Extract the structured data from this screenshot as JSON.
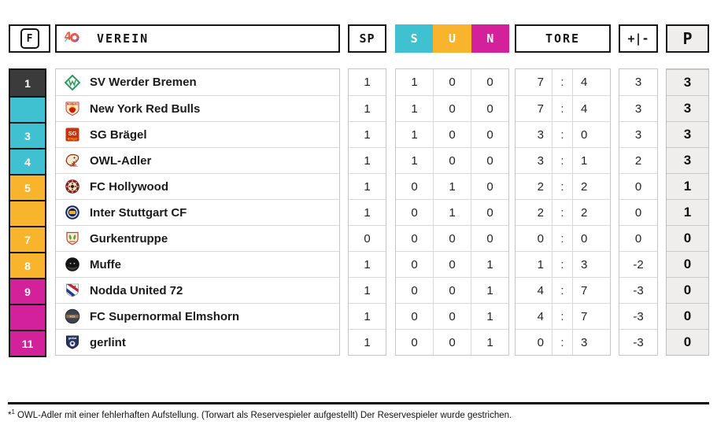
{
  "header": {
    "f": "F",
    "verein": "VEREIN",
    "anniversary_logo": "40",
    "sp": "SP",
    "s": "S",
    "u": "U",
    "n": "N",
    "tore": "TORE",
    "diff": "+|-",
    "points": "P"
  },
  "colors": {
    "band_dark": "#3b3b3b",
    "band_cyan": "#3fc1d2",
    "band_yellow": "#f7b42c",
    "band_magenta": "#d2219a",
    "header_s": "#3fc1d2",
    "header_u": "#f7b42c",
    "header_n": "#d2219a",
    "points_bg": "#efeeed"
  },
  "chart_data": {
    "type": "table",
    "title": "League standings",
    "columns": [
      "F",
      "VEREIN",
      "SP",
      "S",
      "U",
      "N",
      "TORE",
      "+|-",
      "P"
    ],
    "goals_separator": ":",
    "rows": [
      {
        "rank": "1",
        "band": "dark",
        "logo": "werder-bremen",
        "club": "SV Werder Bremen",
        "sp": "1",
        "s": "1",
        "u": "0",
        "n": "0",
        "goals_for": "7",
        "goals_against": "4",
        "diff": "3",
        "points": "3"
      },
      {
        "rank": "",
        "band": "cyan",
        "logo": "new-york-red-bulls",
        "club": "New York Red Bulls",
        "sp": "1",
        "s": "1",
        "u": "0",
        "n": "0",
        "goals_for": "7",
        "goals_against": "4",
        "diff": "3",
        "points": "3"
      },
      {
        "rank": "3",
        "band": "cyan",
        "logo": "sg-braegel",
        "club": "SG Brägel",
        "sp": "1",
        "s": "1",
        "u": "0",
        "n": "0",
        "goals_for": "3",
        "goals_against": "0",
        "diff": "3",
        "points": "3"
      },
      {
        "rank": "4",
        "band": "cyan",
        "logo": "owl-adler",
        "club": "OWL-Adler",
        "sp": "1",
        "s": "1",
        "u": "0",
        "n": "0",
        "goals_for": "3",
        "goals_against": "1",
        "diff": "2",
        "points": "3"
      },
      {
        "rank": "5",
        "band": "yellow",
        "logo": "fc-hollywood",
        "club": "FC Hollywood",
        "sp": "1",
        "s": "0",
        "u": "1",
        "n": "0",
        "goals_for": "2",
        "goals_against": "2",
        "diff": "0",
        "points": "1"
      },
      {
        "rank": "",
        "band": "yellow",
        "logo": "inter-stuttgart",
        "club": "Inter Stuttgart CF",
        "sp": "1",
        "s": "0",
        "u": "1",
        "n": "0",
        "goals_for": "2",
        "goals_against": "2",
        "diff": "0",
        "points": "1"
      },
      {
        "rank": "7",
        "band": "yellow",
        "logo": "gurkentruppe",
        "club": "Gurkentruppe",
        "sp": "0",
        "s": "0",
        "u": "0",
        "n": "0",
        "goals_for": "0",
        "goals_against": "0",
        "diff": "0",
        "points": "0"
      },
      {
        "rank": "8",
        "band": "yellow",
        "logo": "muffe",
        "club": "Muffe",
        "sp": "1",
        "s": "0",
        "u": "0",
        "n": "1",
        "goals_for": "1",
        "goals_against": "3",
        "diff": "-2",
        "points": "0"
      },
      {
        "rank": "9",
        "band": "magenta",
        "logo": "nodda-united",
        "club": "Nodda United 72",
        "sp": "1",
        "s": "0",
        "u": "0",
        "n": "1",
        "goals_for": "4",
        "goals_against": "7",
        "diff": "-3",
        "points": "0"
      },
      {
        "rank": "",
        "band": "magenta",
        "logo": "fc-supernormal",
        "club": "FC Supernormal Elmshorn",
        "sp": "1",
        "s": "0",
        "u": "0",
        "n": "1",
        "goals_for": "4",
        "goals_against": "7",
        "diff": "-3",
        "points": "0"
      },
      {
        "rank": "11",
        "band": "magenta",
        "logo": "gerlint",
        "club": "gerlint",
        "sp": "1",
        "s": "0",
        "u": "0",
        "n": "1",
        "goals_for": "0",
        "goals_against": "3",
        "diff": "-3",
        "points": "0"
      }
    ]
  },
  "footnote": {
    "marker": "*",
    "superscript": "1",
    "text": "OWL-Adler mit einer fehlerhaften Aufstellung. (Torwart als Reservespieler aufgestellt) Der Reservespieler wurde gestrichen."
  }
}
